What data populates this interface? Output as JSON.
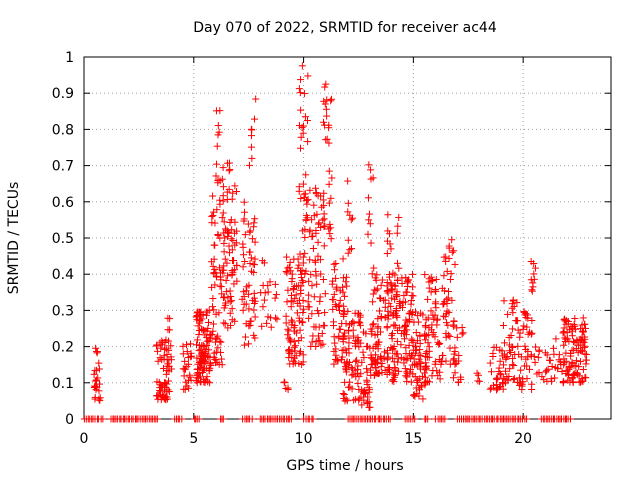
{
  "chart_data": {
    "type": "scatter",
    "title": "Day 070 of 2022, SRMTID for receiver ac44",
    "xlabel": "GPS time / hours",
    "ylabel": "SRMTID / TECUs",
    "xlim": [
      0,
      24
    ],
    "ylim": [
      0,
      1
    ],
    "x_ticks": [
      "0",
      "5",
      "10",
      "15",
      "20"
    ],
    "x_tick_values": [
      0,
      5,
      10,
      15,
      20
    ],
    "y_ticks": [
      "0",
      "0.1",
      "0.2",
      "0.3",
      "0.4",
      "0.5",
      "0.6",
      "0.7",
      "0.8",
      "0.9",
      "1"
    ],
    "y_tick_values": [
      0,
      0.1,
      0.2,
      0.3,
      0.4,
      0.5,
      0.6,
      0.7,
      0.8,
      0.9,
      1.0
    ],
    "grid": true,
    "marker": "plus",
    "series_color": "#ff0000",
    "clusters": [
      {
        "x_range": [
          0.45,
          0.75
        ],
        "y_range": [
          0.05,
          0.21
        ],
        "count": 25
      },
      {
        "x_range": [
          3.3,
          3.9
        ],
        "y_range": [
          0.05,
          0.22
        ],
        "count": 60
      },
      {
        "x_range": [
          3.8,
          4.0
        ],
        "y_range": [
          0.12,
          0.3
        ],
        "count": 12
      },
      {
        "x_range": [
          4.5,
          4.9
        ],
        "y_range": [
          0.08,
          0.21
        ],
        "count": 25
      },
      {
        "x_range": [
          5.1,
          5.8
        ],
        "y_range": [
          0.1,
          0.3
        ],
        "count": 110
      },
      {
        "x_range": [
          5.8,
          6.3
        ],
        "y_range": [
          0.15,
          0.62
        ],
        "count": 60
      },
      {
        "x_range": [
          6.0,
          6.2
        ],
        "y_range": [
          0.65,
          0.88
        ],
        "count": 12
      },
      {
        "x_range": [
          6.3,
          7.0
        ],
        "y_range": [
          0.25,
          0.72
        ],
        "count": 80
      },
      {
        "x_range": [
          7.2,
          7.8
        ],
        "y_range": [
          0.2,
          0.6
        ],
        "count": 55
      },
      {
        "x_range": [
          7.5,
          7.9
        ],
        "y_range": [
          0.7,
          0.9
        ],
        "count": 8
      },
      {
        "x_range": [
          8.0,
          8.8
        ],
        "y_range": [
          0.25,
          0.45
        ],
        "count": 20
      },
      {
        "x_range": [
          9.0,
          9.3
        ],
        "y_range": [
          0.08,
          0.15
        ],
        "count": 5
      },
      {
        "x_range": [
          9.2,
          10.0
        ],
        "y_range": [
          0.15,
          0.45
        ],
        "count": 90
      },
      {
        "x_range": [
          9.8,
          10.2
        ],
        "y_range": [
          0.4,
          0.99
        ],
        "count": 40
      },
      {
        "x_range": [
          10.2,
          11.0
        ],
        "y_range": [
          0.2,
          0.65
        ],
        "count": 70
      },
      {
        "x_range": [
          10.9,
          11.3
        ],
        "y_range": [
          0.4,
          0.93
        ],
        "count": 30
      },
      {
        "x_range": [
          11.3,
          12.0
        ],
        "y_range": [
          0.15,
          0.45
        ],
        "count": 60
      },
      {
        "x_range": [
          11.8,
          12.6
        ],
        "y_range": [
          0.05,
          0.3
        ],
        "count": 70
      },
      {
        "x_range": [
          12.0,
          12.3
        ],
        "y_range": [
          0.45,
          0.66
        ],
        "count": 10
      },
      {
        "x_range": [
          12.6,
          13.1
        ],
        "y_range": [
          0.03,
          0.25
        ],
        "count": 40
      },
      {
        "x_range": [
          12.9,
          13.2
        ],
        "y_range": [
          0.4,
          0.71
        ],
        "count": 12
      },
      {
        "x_range": [
          13.1,
          14.0
        ],
        "y_range": [
          0.12,
          0.4
        ],
        "count": 90
      },
      {
        "x_range": [
          13.8,
          14.4
        ],
        "y_range": [
          0.35,
          0.58
        ],
        "count": 20
      },
      {
        "x_range": [
          14.0,
          15.0
        ],
        "y_range": [
          0.1,
          0.4
        ],
        "count": 120
      },
      {
        "x_range": [
          15.0,
          15.6
        ],
        "y_range": [
          0.05,
          0.3
        ],
        "count": 60
      },
      {
        "x_range": [
          15.5,
          16.3
        ],
        "y_range": [
          0.1,
          0.4
        ],
        "count": 60
      },
      {
        "x_range": [
          16.3,
          16.9
        ],
        "y_range": [
          0.15,
          0.5
        ],
        "count": 45
      },
      {
        "x_range": [
          16.8,
          17.3
        ],
        "y_range": [
          0.1,
          0.28
        ],
        "count": 20
      },
      {
        "x_range": [
          17.9,
          18.1
        ],
        "y_range": [
          0.1,
          0.15
        ],
        "count": 4
      },
      {
        "x_range": [
          18.5,
          19.1
        ],
        "y_range": [
          0.08,
          0.2
        ],
        "count": 30
      },
      {
        "x_range": [
          19.1,
          19.8
        ],
        "y_range": [
          0.1,
          0.33
        ],
        "count": 45
      },
      {
        "x_range": [
          19.8,
          20.4
        ],
        "y_range": [
          0.08,
          0.3
        ],
        "count": 40
      },
      {
        "x_range": [
          20.3,
          20.6
        ],
        "y_range": [
          0.35,
          0.46
        ],
        "count": 10
      },
      {
        "x_range": [
          20.5,
          21.3
        ],
        "y_range": [
          0.1,
          0.2
        ],
        "count": 20
      },
      {
        "x_range": [
          21.3,
          21.9
        ],
        "y_range": [
          0.1,
          0.3
        ],
        "count": 15
      },
      {
        "x_range": [
          21.8,
          22.9
        ],
        "y_range": [
          0.1,
          0.28
        ],
        "count": 110
      }
    ],
    "zero_x_segments": [
      [
        0.0,
        0.9
      ],
      [
        1.2,
        3.4
      ],
      [
        4.1,
        4.5
      ],
      [
        5.0,
        5.3
      ],
      [
        6.2,
        6.4
      ],
      [
        7.2,
        7.7
      ],
      [
        8.0,
        9.5
      ],
      [
        10.0,
        10.5
      ],
      [
        12.0,
        14.0
      ],
      [
        14.6,
        15.1
      ],
      [
        15.5,
        15.7
      ],
      [
        16.0,
        16.5
      ],
      [
        17.0,
        20.2
      ],
      [
        20.8,
        22.2
      ]
    ],
    "zero_count": 180
  }
}
